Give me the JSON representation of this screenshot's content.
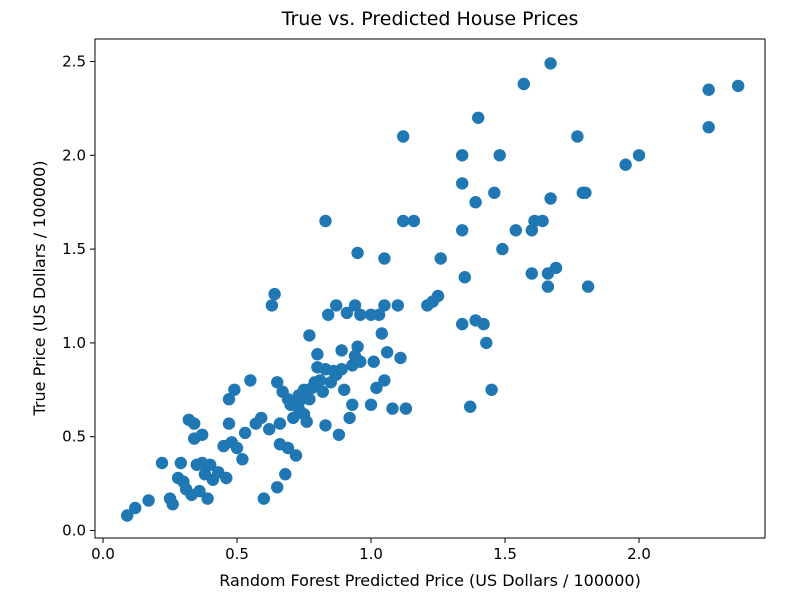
{
  "chart_data": {
    "type": "scatter",
    "title": "True vs. Predicted House Prices",
    "xlabel": "Random Forest Predicted Price (US Dollars / 100000)",
    "ylabel": "True Price (US Dollars / 100000)",
    "xlim": [
      -0.03,
      2.47
    ],
    "ylim": [
      -0.04,
      2.62
    ],
    "xticks": [
      0.0,
      0.5,
      1.0,
      1.5,
      2.0
    ],
    "xtick_labels": [
      "0.0",
      "0.5",
      "1.0",
      "1.5",
      "2.0"
    ],
    "yticks": [
      0.0,
      0.5,
      1.0,
      1.5,
      2.0,
      2.5
    ],
    "ytick_labels": [
      "0.0",
      "0.5",
      "1.0",
      "1.5",
      "2.0",
      "2.5"
    ],
    "grid": false,
    "marker_color": "#1f77b4",
    "points": [
      [
        0.09,
        0.08
      ],
      [
        0.12,
        0.12
      ],
      [
        0.17,
        0.16
      ],
      [
        0.22,
        0.36
      ],
      [
        0.25,
        0.17
      ],
      [
        0.26,
        0.14
      ],
      [
        0.28,
        0.28
      ],
      [
        0.29,
        0.36
      ],
      [
        0.3,
        0.26
      ],
      [
        0.31,
        0.22
      ],
      [
        0.32,
        0.59
      ],
      [
        0.33,
        0.19
      ],
      [
        0.34,
        0.57
      ],
      [
        0.34,
        0.49
      ],
      [
        0.35,
        0.35
      ],
      [
        0.36,
        0.21
      ],
      [
        0.37,
        0.36
      ],
      [
        0.37,
        0.51
      ],
      [
        0.38,
        0.3
      ],
      [
        0.39,
        0.17
      ],
      [
        0.4,
        0.35
      ],
      [
        0.41,
        0.27
      ],
      [
        0.43,
        0.31
      ],
      [
        0.45,
        0.45
      ],
      [
        0.46,
        0.28
      ],
      [
        0.47,
        0.57
      ],
      [
        0.47,
        0.7
      ],
      [
        0.48,
        0.47
      ],
      [
        0.49,
        0.75
      ],
      [
        0.5,
        0.44
      ],
      [
        0.52,
        0.38
      ],
      [
        0.53,
        0.52
      ],
      [
        0.55,
        0.8
      ],
      [
        0.57,
        0.57
      ],
      [
        0.59,
        0.6
      ],
      [
        0.6,
        0.17
      ],
      [
        0.62,
        0.54
      ],
      [
        0.63,
        1.2
      ],
      [
        0.64,
        1.26
      ],
      [
        0.65,
        0.79
      ],
      [
        0.65,
        0.23
      ],
      [
        0.66,
        0.57
      ],
      [
        0.66,
        0.46
      ],
      [
        0.67,
        0.74
      ],
      [
        0.68,
        0.3
      ],
      [
        0.69,
        0.44
      ],
      [
        0.69,
        0.7
      ],
      [
        0.7,
        0.67
      ],
      [
        0.71,
        0.6
      ],
      [
        0.72,
        0.4
      ],
      [
        0.73,
        0.72
      ],
      [
        0.73,
        0.65
      ],
      [
        0.74,
        0.7
      ],
      [
        0.75,
        0.62
      ],
      [
        0.75,
        0.75
      ],
      [
        0.76,
        0.58
      ],
      [
        0.77,
        0.7
      ],
      [
        0.77,
        1.04
      ],
      [
        0.78,
        0.76
      ],
      [
        0.79,
        0.79
      ],
      [
        0.8,
        0.94
      ],
      [
        0.8,
        0.87
      ],
      [
        0.81,
        0.8
      ],
      [
        0.82,
        0.74
      ],
      [
        0.83,
        0.86
      ],
      [
        0.83,
        0.56
      ],
      [
        0.83,
        1.65
      ],
      [
        0.84,
        1.15
      ],
      [
        0.85,
        0.79
      ],
      [
        0.86,
        0.85
      ],
      [
        0.87,
        1.2
      ],
      [
        0.87,
        0.83
      ],
      [
        0.88,
        0.51
      ],
      [
        0.89,
        0.96
      ],
      [
        0.89,
        0.86
      ],
      [
        0.9,
        0.75
      ],
      [
        0.91,
        1.16
      ],
      [
        0.92,
        0.6
      ],
      [
        0.93,
        0.88
      ],
      [
        0.93,
        0.67
      ],
      [
        0.94,
        1.2
      ],
      [
        0.94,
        0.93
      ],
      [
        0.95,
        1.48
      ],
      [
        0.95,
        0.98
      ],
      [
        0.96,
        0.9
      ],
      [
        0.96,
        1.15
      ],
      [
        1.0,
        0.67
      ],
      [
        1.0,
        1.15
      ],
      [
        1.01,
        0.9
      ],
      [
        1.02,
        0.76
      ],
      [
        1.03,
        1.15
      ],
      [
        1.04,
        1.05
      ],
      [
        1.05,
        1.45
      ],
      [
        1.05,
        1.2
      ],
      [
        1.05,
        0.8
      ],
      [
        1.06,
        0.95
      ],
      [
        1.08,
        0.65
      ],
      [
        1.1,
        1.2
      ],
      [
        1.11,
        0.92
      ],
      [
        1.12,
        2.1
      ],
      [
        1.12,
        1.65
      ],
      [
        1.13,
        0.65
      ],
      [
        1.16,
        1.65
      ],
      [
        1.21,
        1.2
      ],
      [
        1.23,
        1.22
      ],
      [
        1.25,
        1.25
      ],
      [
        1.26,
        1.45
      ],
      [
        1.34,
        1.6
      ],
      [
        1.34,
        1.85
      ],
      [
        1.34,
        2.0
      ],
      [
        1.34,
        1.1
      ],
      [
        1.35,
        1.35
      ],
      [
        1.37,
        0.66
      ],
      [
        1.39,
        1.75
      ],
      [
        1.39,
        1.12
      ],
      [
        1.4,
        2.2
      ],
      [
        1.42,
        1.1
      ],
      [
        1.43,
        1.0
      ],
      [
        1.45,
        0.75
      ],
      [
        1.46,
        1.8
      ],
      [
        1.48,
        2.0
      ],
      [
        1.49,
        1.5
      ],
      [
        1.54,
        1.6
      ],
      [
        1.57,
        2.38
      ],
      [
        1.6,
        1.37
      ],
      [
        1.6,
        1.6
      ],
      [
        1.61,
        1.65
      ],
      [
        1.64,
        1.65
      ],
      [
        1.66,
        1.37
      ],
      [
        1.66,
        1.3
      ],
      [
        1.67,
        1.77
      ],
      [
        1.67,
        2.49
      ],
      [
        1.69,
        1.4
      ],
      [
        1.77,
        2.1
      ],
      [
        1.79,
        1.8
      ],
      [
        1.8,
        1.8
      ],
      [
        1.81,
        1.3
      ],
      [
        1.95,
        1.95
      ],
      [
        2.0,
        2.0
      ],
      [
        2.26,
        2.35
      ],
      [
        2.26,
        2.15
      ],
      [
        2.37,
        2.37
      ]
    ]
  }
}
